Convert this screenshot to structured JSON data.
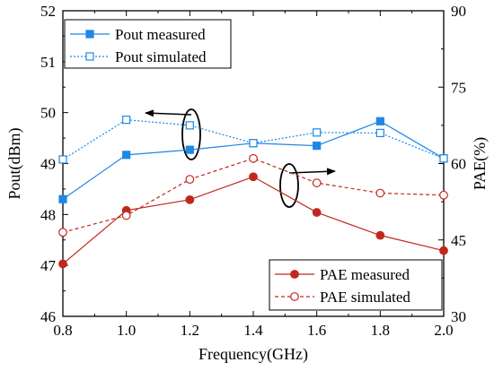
{
  "chart_data": {
    "type": "line",
    "xlabel": "Frequency(GHz)",
    "ylabel_left": "Pout(dBm)",
    "ylabel_right": "PAE(%)",
    "xlim": [
      0.8,
      2.0
    ],
    "ylim_left": [
      46,
      52
    ],
    "ylim_right": [
      30,
      90
    ],
    "x_ticks": [
      "0.8",
      "1.0",
      "1.2",
      "1.4",
      "1.6",
      "1.8",
      "2.0"
    ],
    "y_left_ticks": [
      "46",
      "47",
      "48",
      "49",
      "50",
      "51",
      "52"
    ],
    "y_right_ticks": [
      "30",
      "45",
      "60",
      "75",
      "90"
    ],
    "grid": false,
    "x": [
      0.8,
      1.0,
      1.2,
      1.4,
      1.6,
      1.8,
      2.0
    ],
    "series": [
      {
        "name": "Pout measured",
        "axis": "left",
        "color": "#1e88e5",
        "line": "solid",
        "marker": "square-filled",
        "values": [
          48.3,
          49.17,
          49.27,
          49.4,
          49.35,
          49.83,
          49.1
        ]
      },
      {
        "name": "Pout simulated",
        "axis": "left",
        "color": "#1e88e5",
        "line": "dotted",
        "marker": "square-open",
        "values": [
          49.08,
          49.86,
          49.75,
          49.4,
          49.61,
          49.6,
          49.1
        ]
      },
      {
        "name": "PAE measured",
        "axis": "right",
        "color": "#c0281e",
        "line": "solid",
        "marker": "circle-filled",
        "values": [
          40.3,
          50.8,
          52.9,
          57.4,
          50.4,
          45.9,
          42.9
        ]
      },
      {
        "name": "PAE simulated",
        "axis": "right",
        "color": "#c0281e",
        "line": "dashed",
        "marker": "circle-open",
        "values": [
          46.5,
          49.8,
          56.9,
          61.0,
          56.2,
          54.2,
          53.8
        ]
      }
    ],
    "legend_top": "top-left",
    "legend_bottom": "bottom-right"
  }
}
